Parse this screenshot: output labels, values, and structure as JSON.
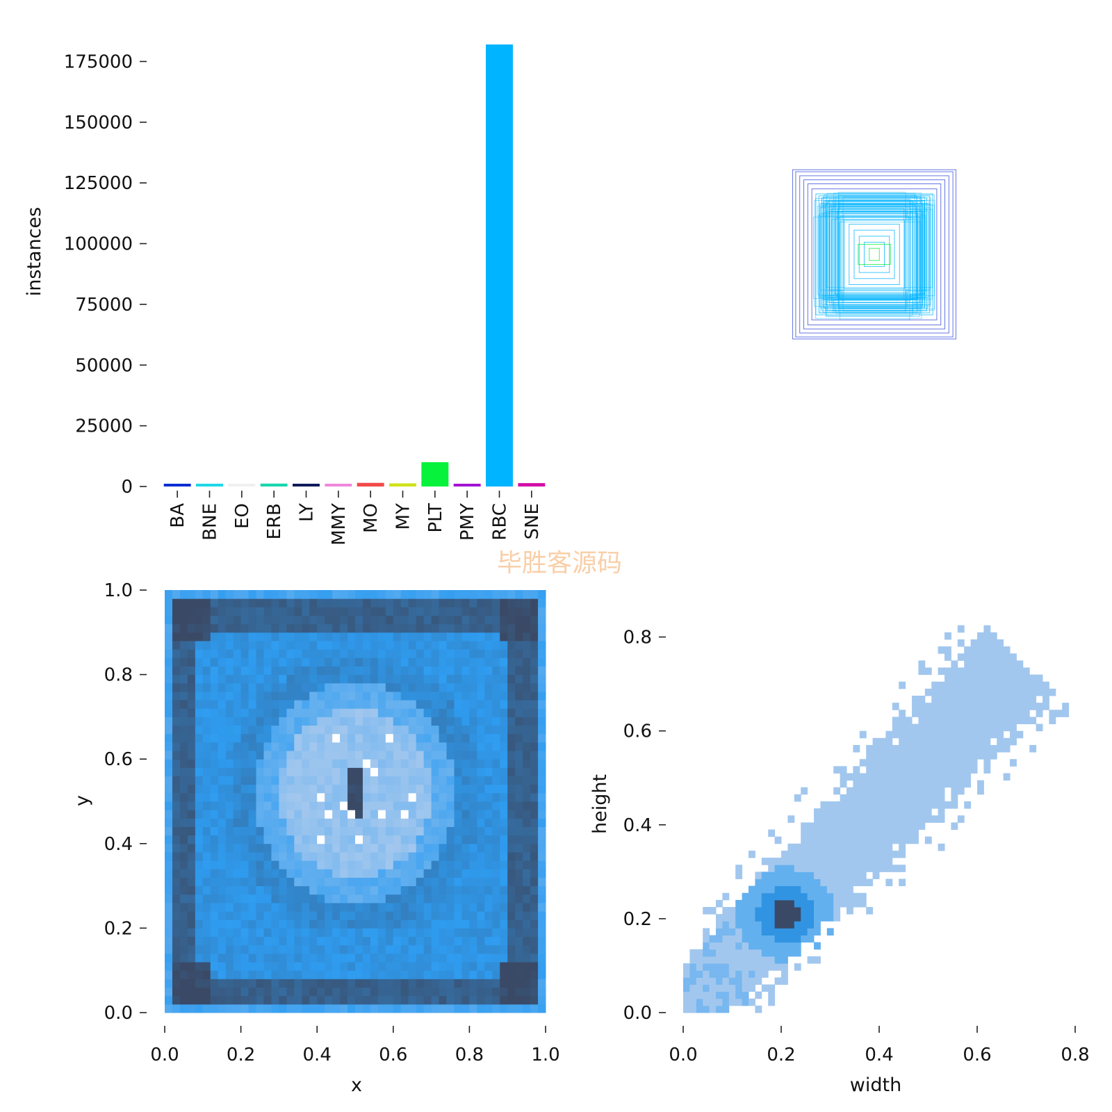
{
  "watermark": "毕胜客源码",
  "chart_data": [
    {
      "type": "bar",
      "ylabel": "instances",
      "xlabel": "",
      "ylim": [
        0,
        182000
      ],
      "yticks": [
        0,
        25000,
        50000,
        75000,
        100000,
        125000,
        150000,
        175000
      ],
      "categories": [
        "BA",
        "BNE",
        "EO",
        "ERB",
        "LY",
        "MMY",
        "MO",
        "MY",
        "PLT",
        "PMY",
        "RBC",
        "SNE"
      ],
      "values": [
        700,
        900,
        600,
        1200,
        600,
        1000,
        1500,
        1300,
        10000,
        400,
        182000,
        1400
      ],
      "colors": [
        "#0b2fd3",
        "#1ed8e8",
        "#f0f0f0",
        "#19d6ae",
        "#101a5c",
        "#f088dd",
        "#f24a4a",
        "#cfe21a",
        "#06f23b",
        "#a313d4",
        "#00b4ff",
        "#d30fa8"
      ]
    },
    {
      "type": "boxes",
      "description": "overlay of label bounding boxes centered at a common point",
      "boxes": [
        {
          "w": 0.81,
          "h": 0.84,
          "color": "#3047d8"
        },
        {
          "w": 0.78,
          "h": 0.82,
          "color": "#3047d8"
        },
        {
          "w": 0.74,
          "h": 0.78,
          "color": "#3047d8"
        },
        {
          "w": 0.7,
          "h": 0.74,
          "color": "#3047d8"
        },
        {
          "w": 0.66,
          "h": 0.7,
          "color": "#3047d8"
        },
        {
          "w": 0.62,
          "h": 0.65,
          "color": "#3047d8"
        },
        {
          "w": 0.58,
          "h": 0.6,
          "color": "#00b4ff"
        },
        {
          "w": 0.55,
          "h": 0.58,
          "color": "#00b4ff"
        },
        {
          "w": 0.52,
          "h": 0.56,
          "color": "#00b4ff"
        },
        {
          "w": 0.5,
          "h": 0.53,
          "color": "#00b4ff"
        },
        {
          "w": 0.48,
          "h": 0.5,
          "color": "#00b4ff"
        },
        {
          "w": 0.45,
          "h": 0.48,
          "color": "#00b4ff"
        },
        {
          "w": 0.42,
          "h": 0.45,
          "color": "#00b4ff"
        },
        {
          "w": 0.38,
          "h": 0.42,
          "color": "#00b4ff"
        },
        {
          "w": 0.34,
          "h": 0.38,
          "color": "#00b4ff"
        },
        {
          "w": 0.3,
          "h": 0.34,
          "color": "#00b4ff"
        },
        {
          "w": 0.25,
          "h": 0.3,
          "color": "#00b4ff"
        },
        {
          "w": 0.2,
          "h": 0.24,
          "color": "#00b4ff"
        },
        {
          "w": 0.15,
          "h": 0.18,
          "color": "#00b4ff"
        },
        {
          "w": 0.1,
          "h": 0.12,
          "color": "#00b4ff"
        },
        {
          "w": 0.16,
          "h": 0.1,
          "color": "#06f23b"
        },
        {
          "w": 0.05,
          "h": 0.06,
          "color": "#06f23b"
        }
      ]
    },
    {
      "type": "heatmap",
      "xlabel": "x",
      "ylabel": "y",
      "xlim": [
        0,
        1
      ],
      "ylim": [
        0,
        1
      ],
      "xticks": [
        0.0,
        0.2,
        0.4,
        0.6,
        0.8,
        1.0
      ],
      "yticks": [
        0.0,
        0.2,
        0.4,
        0.6,
        0.8,
        1.0
      ],
      "xtick_labels": [
        "0.0",
        "0.2",
        "0.4",
        "0.6",
        "0.8",
        "1.0"
      ],
      "ytick_labels": [
        "0.0",
        "0.2",
        "0.4",
        "0.6",
        "0.8",
        "1.0"
      ],
      "bins": 50,
      "pattern": "high density along borders and corners (~0.05, 0.95), central ring at radius ~0.22, light center with dense spot near (0.5, 0.52)"
    },
    {
      "type": "heatmap",
      "xlabel": "width",
      "ylabel": "height",
      "xlim": [
        0,
        0.8
      ],
      "ylim": [
        0,
        0.9
      ],
      "xticks": [
        0.0,
        0.2,
        0.4,
        0.6,
        0.8
      ],
      "yticks": [
        0.0,
        0.2,
        0.4,
        0.6,
        0.8
      ],
      "xtick_labels": [
        "0.0",
        "0.2",
        "0.4",
        "0.6",
        "0.8"
      ],
      "ytick_labels": [
        "0.0",
        "0.2",
        "0.4",
        "0.6",
        "0.8"
      ],
      "bins": 60,
      "pattern": "diagonal band from (0,0) to (0.7,0.75), dense peak near (0.21, 0.21)"
    }
  ]
}
